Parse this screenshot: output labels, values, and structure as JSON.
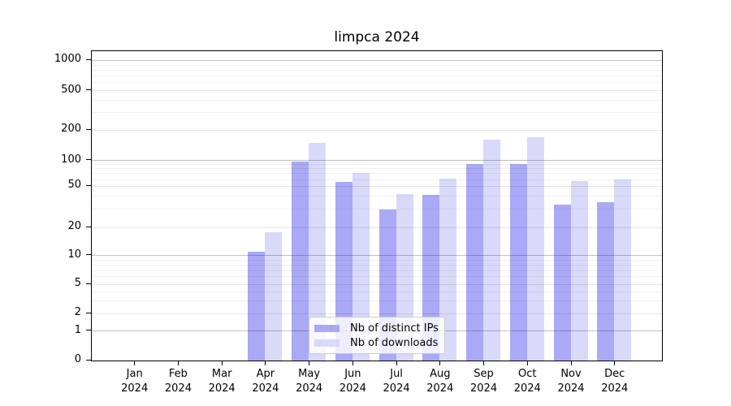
{
  "title": "limpca 2024",
  "chart_data": {
    "type": "bar",
    "title": "limpca 2024",
    "categories": [
      "Jan 2024",
      "Feb 2024",
      "Mar 2024",
      "Apr 2024",
      "May 2024",
      "Jun 2024",
      "Jul 2024",
      "Aug 2024",
      "Sep 2024",
      "Oct 2024",
      "Nov 2024",
      "Dec 2024"
    ],
    "series": [
      {
        "name": "Nb of distinct IPs",
        "color": "#a9a9f6",
        "values": [
          0,
          0,
          0,
          11,
          97,
          56,
          30,
          41,
          92,
          92,
          33,
          35
        ]
      },
      {
        "name": "Nb of downloads",
        "color": "#d9d9f9",
        "values": [
          0,
          0,
          0,
          18,
          150,
          72,
          42,
          61,
          160,
          170,
          57,
          60
        ]
      }
    ],
    "yscale": "symlog",
    "yticks": [
      0,
      1,
      2,
      5,
      10,
      20,
      50,
      100,
      200,
      500,
      1000
    ],
    "ylim": [
      0,
      1200
    ],
    "grid": true,
    "legend_position": "lower center",
    "xlabel": "",
    "ylabel": ""
  }
}
